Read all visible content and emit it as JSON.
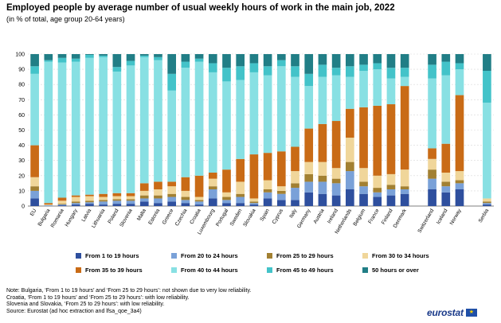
{
  "header": {
    "title": "Employed people by average number of usual weekly hours of work in the main job, 2022",
    "subtitle": "(in % of total, age group 20-64 years)"
  },
  "notes": [
    "Note: Bulgaria, ‘From 1 to 19 hours’ and ‘From 25 to 29 hours’: not shown due to very low reliability.",
    "Croatia, ‘From 1 to 19 hours’ and ‘From 25 to 29 hours’: with low reliability.",
    "Slovenia and Slovakia, ‘From 25 to 29 hours’: with low reliability.",
    "Source: Eurostat (ad hoc extraction and lfsa_qoe_3a4)"
  ],
  "branding": {
    "logo_text": "eurostat",
    "flag_symbol": "★"
  },
  "chart_data": {
    "type": "bar",
    "stacked": true,
    "categories": [
      "EU",
      "Bulgaria",
      "Romania",
      "Hungary",
      "Latvia",
      "Lithuania",
      "Poland",
      "Slovenia",
      "Malta",
      "Estonia",
      "Greece",
      "Czechia",
      "Croatia",
      "Luxembourg",
      "Portugal",
      "Sweden",
      "Slovakia",
      "Spain",
      "Cyprus",
      "Italy",
      "Germany",
      "Austria",
      "Ireland",
      "Netherlands",
      "Belgium",
      "France",
      "Finland",
      "Denmark",
      "",
      "Switzerland",
      "Iceland",
      "Norway",
      "",
      "Serbia"
    ],
    "series": [
      {
        "name": "From 1 to 19 hours",
        "color": "#2e4f9e",
        "values": [
          5,
          0,
          0.5,
          1,
          1.5,
          1,
          1.5,
          1.5,
          3,
          2,
          3,
          2,
          1,
          5,
          2,
          2,
          1,
          5,
          4,
          4,
          9,
          8,
          7,
          11,
          8,
          6,
          7,
          8,
          null,
          11,
          9,
          11,
          null,
          1
        ]
      },
      {
        "name": "From 20 to 24 hours",
        "color": "#7aa1d8",
        "values": [
          5,
          0.5,
          0.5,
          1,
          1,
          2,
          2,
          2,
          2,
          3,
          3,
          2,
          2,
          6,
          2,
          4,
          1,
          4,
          4,
          8,
          7,
          8,
          8,
          12,
          5,
          3,
          4,
          3,
          null,
          7,
          4,
          4,
          null,
          1
        ]
      },
      {
        "name": "From 25 to 29 hours",
        "color": "#a28032",
        "values": [
          3,
          0,
          0.5,
          1,
          1,
          1,
          1,
          1,
          2,
          2,
          2,
          2,
          1,
          2,
          2,
          2,
          1,
          2,
          2,
          3,
          5,
          4,
          3,
          6,
          3,
          3,
          3,
          2,
          null,
          6,
          3,
          2,
          null,
          1
        ]
      },
      {
        "name": "From 30 to 34 hours",
        "color": "#f0d69a",
        "values": [
          6,
          0.5,
          2,
          3,
          3,
          2,
          2,
          2,
          3,
          4,
          5,
          4,
          2,
          5,
          3,
          8,
          2,
          6,
          3,
          8,
          8,
          9,
          7,
          16,
          9,
          8,
          7,
          11,
          null,
          7,
          6,
          6,
          null,
          2
        ]
      },
      {
        "name": "From 35 to 39 hours",
        "color": "#c96b16",
        "values": [
          21,
          1,
          2,
          1,
          1,
          2,
          2,
          2,
          5,
          5,
          3,
          9,
          14,
          4,
          15,
          15,
          29,
          18,
          23,
          16,
          22,
          25,
          31,
          19,
          40,
          46,
          46,
          55,
          null,
          7,
          19,
          50,
          null,
          0
        ]
      },
      {
        "name": "From 40 to 44 hours",
        "color": "#88e0e3",
        "values": [
          47,
          93,
          89,
          88,
          90,
          90,
          80,
          84,
          83,
          80,
          60,
          72,
          75,
          66,
          58,
          52,
          54,
          51,
          56,
          46,
          28,
          31,
          30,
          21,
          24,
          24,
          17,
          6,
          null,
          46,
          45,
          17,
          null,
          63
        ]
      },
      {
        "name": "From 45 to 49 hours",
        "color": "#43c3c9",
        "values": [
          5,
          1,
          3,
          2,
          2,
          1,
          3,
          3,
          1,
          2,
          11,
          4,
          2,
          6,
          9,
          9,
          6,
          6,
          4,
          7,
          8,
          8,
          5,
          7,
          4,
          4,
          7,
          6,
          null,
          9,
          9,
          4,
          null,
          21
        ]
      },
      {
        "name": "50 hours or over",
        "color": "#217e86",
        "values": [
          8,
          4,
          2.5,
          3,
          0.5,
          1,
          8.5,
          4.5,
          1,
          2,
          13,
          5,
          3,
          6,
          9,
          8,
          6,
          8,
          4,
          8,
          13,
          7,
          9,
          8,
          7,
          6,
          9,
          9,
          null,
          7,
          5,
          6,
          null,
          11
        ]
      }
    ],
    "ylim": [
      0,
      100
    ],
    "yticks": [
      0,
      10,
      20,
      30,
      40,
      50,
      60,
      70,
      80,
      90,
      100
    ],
    "grid": true,
    "legend_position": "bottom"
  }
}
